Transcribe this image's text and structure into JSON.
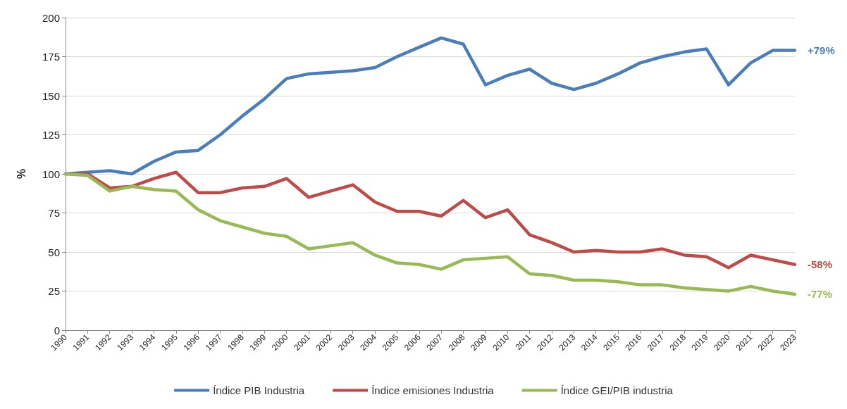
{
  "chart_data": {
    "type": "line",
    "ylabel": "%",
    "categories": [
      "1990",
      "1991",
      "1992",
      "1993",
      "1994",
      "1995",
      "1996",
      "1997",
      "1998",
      "1999",
      "2000",
      "2001",
      "2002",
      "2003",
      "2004",
      "2005",
      "2006",
      "2007",
      "2008",
      "2009",
      "2010",
      "2011",
      "2012",
      "2013",
      "2014",
      "2015",
      "2016",
      "2017",
      "2018",
      "2019",
      "2020",
      "2021",
      "2022",
      "2023"
    ],
    "series": [
      {
        "name": "Índice PIB Industria",
        "color": "#4a7ebb",
        "values": [
          100,
          101,
          102,
          100,
          108,
          114,
          115,
          125,
          137,
          148,
          161,
          164,
          165,
          166,
          168,
          175,
          181,
          187,
          183,
          157,
          163,
          167,
          158,
          154,
          158,
          164,
          171,
          175,
          178,
          180,
          157,
          171,
          179,
          179
        ]
      },
      {
        "name": "Índice emisiones Industria",
        "color": "#be4b48",
        "values": [
          100,
          100,
          91,
          92,
          97,
          101,
          88,
          88,
          91,
          92,
          97,
          85,
          89,
          93,
          82,
          76,
          76,
          73,
          83,
          72,
          77,
          61,
          56,
          50,
          51,
          50,
          50,
          52,
          48,
          47,
          40,
          48,
          45,
          42
        ]
      },
      {
        "name": "Índice GEI/PIB industria",
        "color": "#98b954",
        "values": [
          100,
          99,
          89,
          92,
          90,
          89,
          77,
          70,
          66,
          62,
          60,
          52,
          54,
          56,
          48,
          43,
          42,
          39,
          45,
          46,
          47,
          36,
          35,
          32,
          32,
          31,
          29,
          29,
          27,
          26,
          25,
          28,
          25,
          23
        ]
      }
    ],
    "annotations": [
      {
        "text": "+79%",
        "x": "2023",
        "y": 179
      },
      {
        "text": "-58%",
        "x": "2023",
        "y": 42
      },
      {
        "text": "-77%",
        "x": "2023",
        "y": 23
      }
    ],
    "ylim": [
      0,
      200
    ],
    "yticks": [
      0,
      25,
      50,
      75,
      100,
      125,
      150,
      175,
      200
    ],
    "grid": "y",
    "legend": "bottom",
    "marker": "none",
    "line_style": "solid"
  }
}
